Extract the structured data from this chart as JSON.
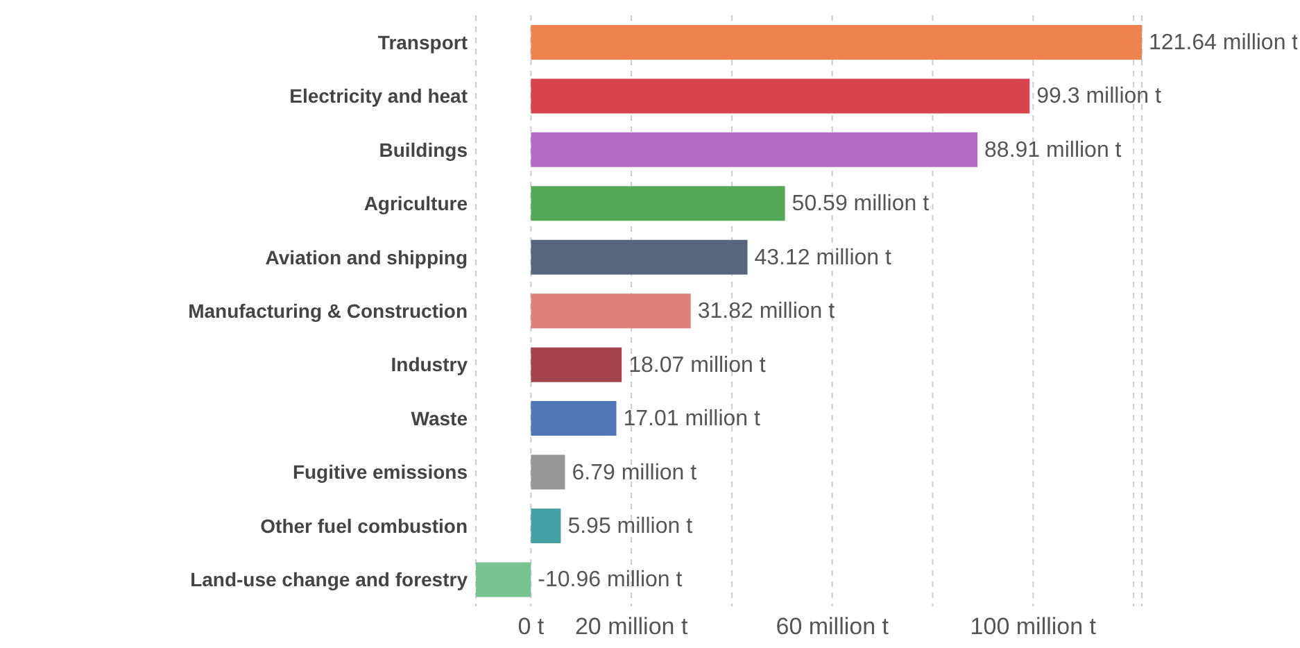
{
  "chart_data": {
    "type": "bar",
    "orientation": "horizontal",
    "categories": [
      "Transport",
      "Electricity and heat",
      "Buildings",
      "Agriculture",
      "Aviation and shipping",
      "Manufacturing & Construction",
      "Industry",
      "Waste",
      "Fugitive emissions",
      "Other fuel combustion",
      "Land-use change and forestry"
    ],
    "values": [
      121.64,
      99.3,
      88.91,
      50.59,
      43.12,
      31.82,
      18.07,
      17.01,
      6.79,
      5.95,
      -10.96
    ],
    "colors": [
      "#f0824e",
      "#d9434e",
      "#b36ac6",
      "#54a857",
      "#58657e",
      "#dc8079",
      "#a4434e",
      "#4f76b8",
      "#969696",
      "#46a0a8",
      "#79c392"
    ],
    "value_labels": [
      "121.64 million t",
      "99.3 million t",
      "88.91 million t",
      "50.59 million t",
      "43.12 million t",
      "31.82 million t",
      "18.07 million t",
      "17.01 million t",
      "6.79 million t",
      "5.95 million t",
      "-10.96 million t"
    ],
    "xlim": [
      -10.96,
      121.64
    ],
    "xticks": [
      {
        "value": 0,
        "label": "0 t"
      },
      {
        "value": 20,
        "label": "20 million t"
      },
      {
        "value": 40,
        "label": null
      },
      {
        "value": 60,
        "label": "60 million t"
      },
      {
        "value": 80,
        "label": null
      },
      {
        "value": 100,
        "label": "100 million t"
      },
      {
        "value": 120,
        "label": null
      }
    ],
    "grid": "x",
    "legend": false
  }
}
